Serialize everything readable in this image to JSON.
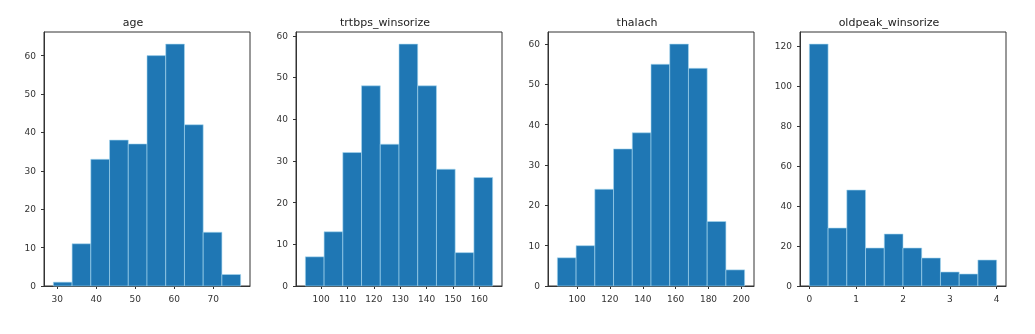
{
  "chart_data": [
    {
      "type": "histogram",
      "title": "age",
      "bins": [
        29,
        33.8,
        38.6,
        43.4,
        48.2,
        53,
        57.8,
        62.6,
        67.4,
        72.2,
        77
      ],
      "values": [
        1,
        11,
        33,
        38,
        37,
        60,
        63,
        42,
        14,
        3
      ],
      "color": "#1f77b4",
      "xlim": [
        26.6,
        79.4
      ],
      "xticks": [
        30,
        40,
        50,
        60,
        70
      ],
      "ylim": [
        0,
        66.15
      ],
      "yticks": [
        0,
        10,
        20,
        30,
        40,
        50,
        60
      ],
      "grid": false
    },
    {
      "type": "histogram",
      "title": "trtbps_winsorize",
      "bins": [
        94,
        101.1,
        108.2,
        115.3,
        122.4,
        129.5,
        136.6,
        143.7,
        150.8,
        157.9,
        165
      ],
      "values": [
        7,
        13,
        32,
        48,
        34,
        58,
        48,
        28,
        8,
        26
      ],
      "color": "#1f77b4",
      "xlim": [
        90.45,
        168.55
      ],
      "xticks": [
        100,
        110,
        120,
        130,
        140,
        150,
        160
      ],
      "ylim": [
        0,
        60.9
      ],
      "yticks": [
        0,
        10,
        20,
        30,
        40,
        50,
        60
      ],
      "grid": false
    },
    {
      "type": "histogram",
      "title": "thalach",
      "bins": [
        88,
        99.4,
        110.8,
        122.2,
        133.6,
        145,
        156.4,
        167.8,
        179.2,
        190.6,
        202
      ],
      "values": [
        7,
        10,
        24,
        34,
        38,
        55,
        60,
        54,
        16,
        4
      ],
      "color": "#1f77b4",
      "xlim": [
        82.3,
        207.7
      ],
      "xticks": [
        100,
        120,
        140,
        160,
        180,
        200
      ],
      "ylim": [
        0,
        63
      ],
      "yticks": [
        0,
        10,
        20,
        30,
        40,
        50,
        60
      ],
      "grid": false
    },
    {
      "type": "histogram",
      "title": "oldpeak_winsorize",
      "bins": [
        0,
        0.4,
        0.8,
        1.2,
        1.6,
        2,
        2.4,
        2.8,
        3.2,
        3.6,
        4
      ],
      "values": [
        121,
        29,
        48,
        19,
        26,
        19,
        14,
        7,
        6,
        13
      ],
      "color": "#1f77b4",
      "xlim": [
        -0.2,
        4.2
      ],
      "xticks": [
        0,
        1,
        2,
        3,
        4
      ],
      "ylim": [
        0,
        127.05
      ],
      "yticks": [
        0,
        20,
        40,
        60,
        80,
        100,
        120
      ],
      "grid": false
    }
  ]
}
